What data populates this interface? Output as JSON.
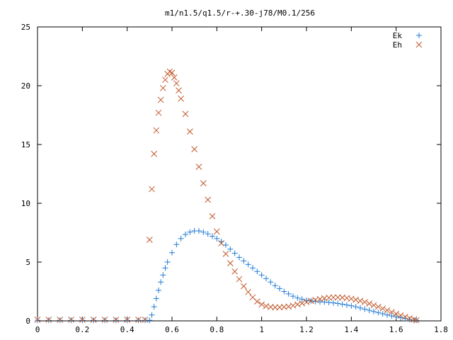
{
  "chart_data": {
    "type": "scatter",
    "title": "m1/n1.5/q1.5/r-+.30-j78/M0.1/256",
    "xlabel": "",
    "ylabel": "",
    "xlim": [
      0,
      1.8
    ],
    "ylim": [
      0,
      25
    ],
    "grid": false,
    "legend_position": "top-right",
    "x_ticks": [
      0,
      0.2,
      0.4,
      0.6,
      0.8,
      1,
      1.2,
      1.4,
      1.6,
      1.8
    ],
    "x_tick_labels": [
      "0",
      "0.2",
      "0.4",
      "0.6",
      "0.8",
      "1",
      "1.2",
      "1.4",
      "1.6",
      "1.8"
    ],
    "y_ticks": [
      0,
      5,
      10,
      15,
      20,
      25
    ],
    "y_tick_labels": [
      "0",
      "5",
      "10",
      "15",
      "20",
      "25"
    ],
    "series": [
      {
        "name": "Ek",
        "marker": "plus",
        "color": "#1f7bd6",
        "x": [
          0.0,
          0.05,
          0.1,
          0.15,
          0.2,
          0.25,
          0.3,
          0.35,
          0.4,
          0.45,
          0.48,
          0.5,
          0.51,
          0.52,
          0.53,
          0.54,
          0.55,
          0.56,
          0.57,
          0.58,
          0.6,
          0.62,
          0.64,
          0.66,
          0.68,
          0.7,
          0.72,
          0.74,
          0.76,
          0.78,
          0.8,
          0.82,
          0.84,
          0.86,
          0.88,
          0.9,
          0.92,
          0.94,
          0.96,
          0.98,
          1.0,
          1.02,
          1.04,
          1.06,
          1.08,
          1.1,
          1.12,
          1.14,
          1.16,
          1.18,
          1.2,
          1.22,
          1.24,
          1.26,
          1.28,
          1.3,
          1.32,
          1.34,
          1.36,
          1.38,
          1.4,
          1.42,
          1.44,
          1.46,
          1.48,
          1.5,
          1.52,
          1.54,
          1.56,
          1.58,
          1.6,
          1.62,
          1.64,
          1.66,
          1.68,
          1.69
        ],
        "y": [
          0.05,
          0.05,
          0.05,
          0.05,
          0.05,
          0.05,
          0.05,
          0.05,
          0.05,
          0.05,
          0.05,
          0.05,
          0.5,
          1.2,
          1.9,
          2.6,
          3.3,
          3.9,
          4.5,
          5.0,
          5.8,
          6.5,
          7.0,
          7.35,
          7.55,
          7.65,
          7.65,
          7.55,
          7.4,
          7.2,
          7.0,
          6.75,
          6.45,
          6.1,
          5.75,
          5.4,
          5.1,
          4.8,
          4.5,
          4.2,
          3.9,
          3.6,
          3.3,
          3.0,
          2.75,
          2.5,
          2.3,
          2.1,
          1.95,
          1.85,
          1.75,
          1.7,
          1.65,
          1.62,
          1.6,
          1.57,
          1.53,
          1.48,
          1.42,
          1.35,
          1.28,
          1.2,
          1.1,
          1.0,
          0.9,
          0.8,
          0.7,
          0.6,
          0.5,
          0.42,
          0.35,
          0.27,
          0.2,
          0.12,
          0.06,
          0.05
        ]
      },
      {
        "name": "Eh",
        "marker": "x",
        "color": "#c0582a",
        "x": [
          0.0,
          0.05,
          0.1,
          0.15,
          0.2,
          0.25,
          0.3,
          0.35,
          0.4,
          0.45,
          0.48,
          0.5,
          0.51,
          0.52,
          0.53,
          0.54,
          0.55,
          0.56,
          0.57,
          0.58,
          0.59,
          0.6,
          0.61,
          0.62,
          0.63,
          0.64,
          0.66,
          0.68,
          0.7,
          0.72,
          0.74,
          0.76,
          0.78,
          0.8,
          0.82,
          0.84,
          0.86,
          0.88,
          0.9,
          0.92,
          0.94,
          0.96,
          0.98,
          1.0,
          1.02,
          1.04,
          1.06,
          1.08,
          1.1,
          1.12,
          1.14,
          1.16,
          1.18,
          1.2,
          1.22,
          1.24,
          1.26,
          1.28,
          1.3,
          1.32,
          1.34,
          1.36,
          1.38,
          1.4,
          1.42,
          1.44,
          1.46,
          1.48,
          1.5,
          1.52,
          1.54,
          1.56,
          1.58,
          1.6,
          1.62,
          1.64,
          1.66,
          1.68,
          1.69
        ],
        "y": [
          0.1,
          0.1,
          0.1,
          0.1,
          0.1,
          0.1,
          0.1,
          0.1,
          0.1,
          0.1,
          0.1,
          6.9,
          11.2,
          14.2,
          16.2,
          17.7,
          18.8,
          19.8,
          20.5,
          21.0,
          21.2,
          21.1,
          20.7,
          20.2,
          19.6,
          18.9,
          17.6,
          16.1,
          14.6,
          13.1,
          11.7,
          10.3,
          8.9,
          7.6,
          6.6,
          5.7,
          4.9,
          4.2,
          3.55,
          2.95,
          2.45,
          2.0,
          1.65,
          1.4,
          1.25,
          1.18,
          1.15,
          1.15,
          1.18,
          1.22,
          1.3,
          1.4,
          1.5,
          1.6,
          1.7,
          1.78,
          1.86,
          1.92,
          1.97,
          2.0,
          2.0,
          1.98,
          1.94,
          1.88,
          1.8,
          1.7,
          1.6,
          1.47,
          1.33,
          1.2,
          1.05,
          0.9,
          0.75,
          0.6,
          0.47,
          0.35,
          0.23,
          0.12,
          0.05
        ]
      }
    ]
  }
}
